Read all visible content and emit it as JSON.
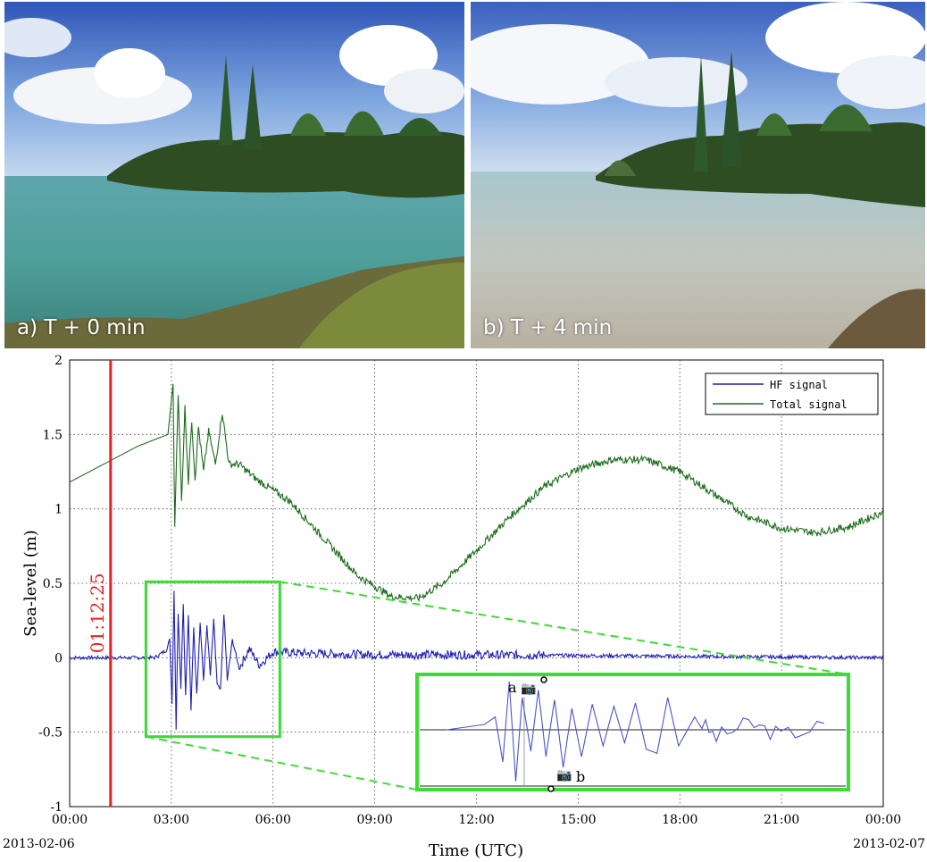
{
  "photos": [
    {
      "caption": "a) T + 0 min"
    },
    {
      "caption": "b) T + 4 min"
    }
  ],
  "chart_data": {
    "type": "line",
    "xlabel": "Time (UTC)",
    "ylabel": "Sea-level (m)",
    "xlim": [
      0,
      24
    ],
    "ylim": [
      -1,
      2
    ],
    "xticks": [
      0,
      3,
      6,
      9,
      12,
      15,
      18,
      21,
      24
    ],
    "xtick_labels": [
      "00:00",
      "03:00",
      "06:00",
      "09:00",
      "12:00",
      "15:00",
      "18:00",
      "21:00",
      "00:00"
    ],
    "yticks": [
      -1,
      -0.5,
      0,
      0.5,
      1,
      1.5,
      2
    ],
    "ytick_labels": [
      "-1",
      "-0.5",
      "0",
      "0.5",
      "1",
      "1.5",
      "2"
    ],
    "start_date": "2013-02-06",
    "end_date": "2013-02-07",
    "grid": true,
    "legend_position": "top-right",
    "event_line": {
      "x": 1.207,
      "label": "01:12:25",
      "color": "#e8201e"
    },
    "series": [
      {
        "name": "HF signal",
        "color": "#1f1fb4",
        "points": [
          [
            0,
            0
          ],
          [
            2.5,
            0
          ],
          [
            2.85,
            0.05
          ],
          [
            2.95,
            0.12
          ],
          [
            3.02,
            -0.3
          ],
          [
            3.08,
            0.45
          ],
          [
            3.14,
            -0.48
          ],
          [
            3.2,
            0.3
          ],
          [
            3.28,
            -0.2
          ],
          [
            3.35,
            0.37
          ],
          [
            3.42,
            -0.25
          ],
          [
            3.5,
            0.28
          ],
          [
            3.58,
            -0.35
          ],
          [
            3.66,
            0.2
          ],
          [
            3.75,
            -0.25
          ],
          [
            3.85,
            0.24
          ],
          [
            3.95,
            -0.15
          ],
          [
            4.05,
            0.22
          ],
          [
            4.15,
            -0.12
          ],
          [
            4.25,
            0.25
          ],
          [
            4.35,
            -0.18
          ],
          [
            4.45,
            -0.22
          ],
          [
            4.55,
            0.3
          ],
          [
            4.65,
            -0.15
          ],
          [
            4.8,
            0.12
          ],
          [
            5,
            -0.07
          ],
          [
            5.3,
            0.06
          ],
          [
            5.6,
            -0.05
          ],
          [
            6,
            0.04
          ],
          [
            7,
            0.03
          ],
          [
            9,
            0.02
          ],
          [
            12,
            0.02
          ],
          [
            24,
            0
          ]
        ]
      },
      {
        "name": "Total signal",
        "color": "#1b6b1b",
        "points": [
          [
            0,
            1.18
          ],
          [
            1,
            1.3
          ],
          [
            2,
            1.42
          ],
          [
            2.9,
            1.5
          ],
          [
            3.05,
            1.84
          ],
          [
            3.1,
            0.88
          ],
          [
            3.2,
            1.78
          ],
          [
            3.3,
            1.05
          ],
          [
            3.4,
            1.68
          ],
          [
            3.5,
            1.18
          ],
          [
            3.6,
            1.6
          ],
          [
            3.7,
            1.2
          ],
          [
            3.8,
            1.55
          ],
          [
            3.95,
            1.25
          ],
          [
            4.1,
            1.52
          ],
          [
            4.3,
            1.3
          ],
          [
            4.5,
            1.65
          ],
          [
            4.7,
            1.3
          ],
          [
            5,
            1.3
          ],
          [
            5.5,
            1.2
          ],
          [
            6.5,
            1.05
          ],
          [
            7.5,
            0.8
          ],
          [
            8.5,
            0.55
          ],
          [
            9.5,
            0.41
          ],
          [
            10.3,
            0.4
          ],
          [
            11,
            0.5
          ],
          [
            12,
            0.72
          ],
          [
            13,
            0.95
          ],
          [
            14,
            1.15
          ],
          [
            15,
            1.27
          ],
          [
            16,
            1.33
          ],
          [
            17,
            1.33
          ],
          [
            18,
            1.25
          ],
          [
            19,
            1.1
          ],
          [
            20,
            0.95
          ],
          [
            21,
            0.87
          ],
          [
            22,
            0.84
          ],
          [
            23,
            0.88
          ],
          [
            24,
            0.98
          ]
        ]
      }
    ],
    "zoom_inset": {
      "marker_a": "a",
      "marker_b": "b"
    }
  }
}
